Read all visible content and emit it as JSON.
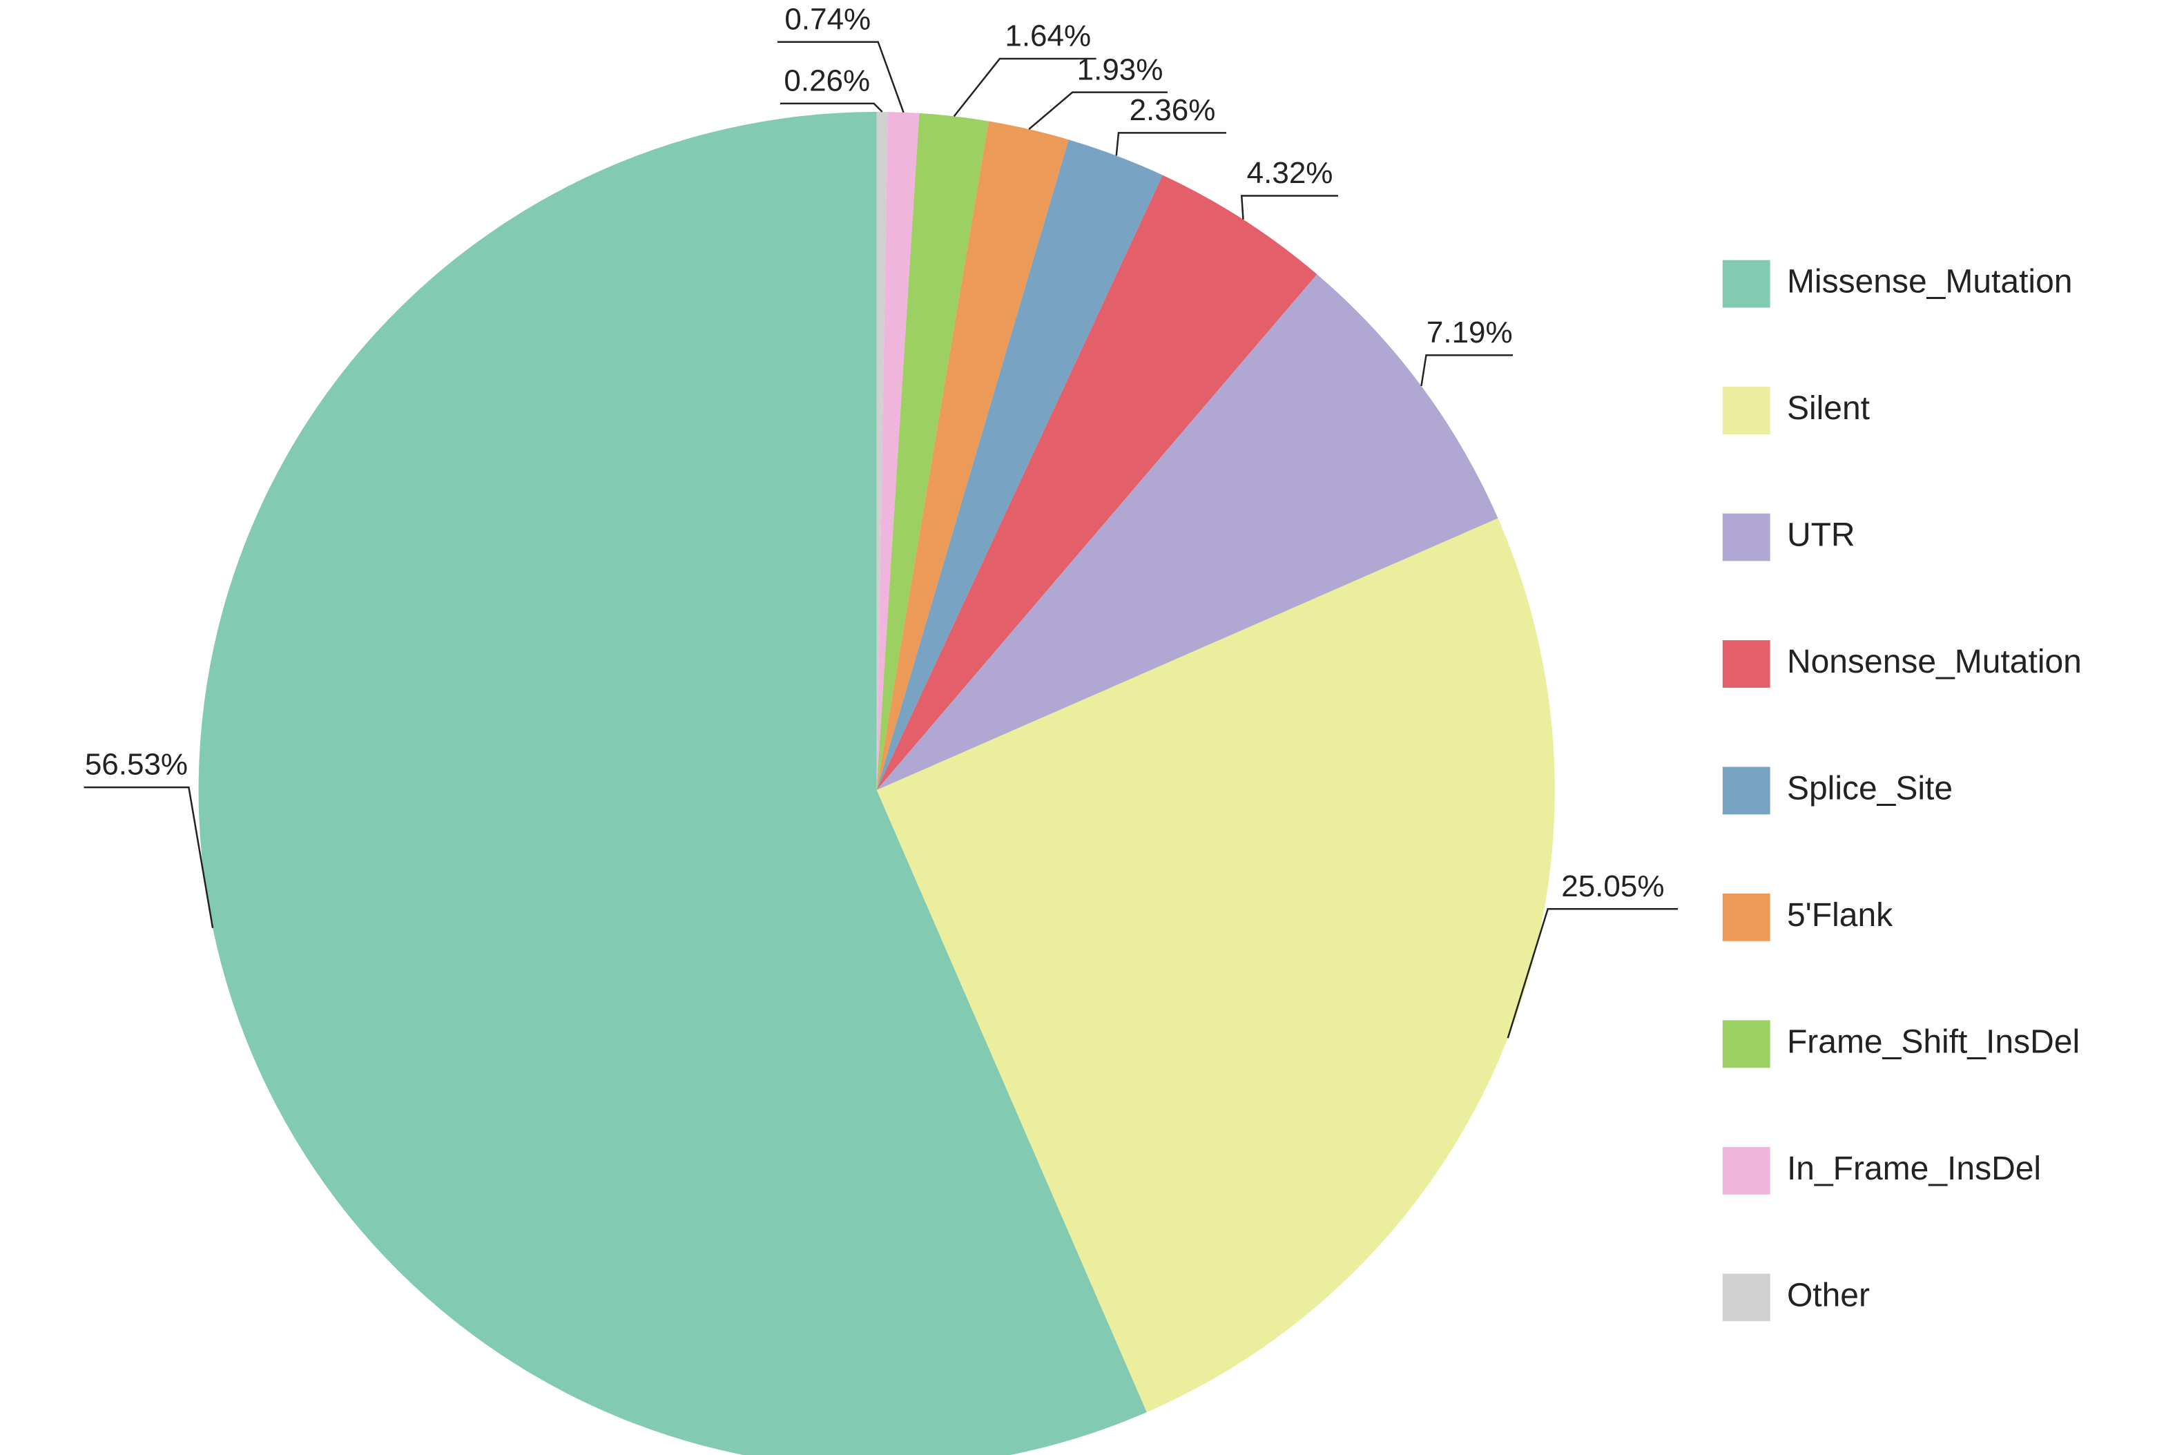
{
  "chart_data": {
    "type": "pie",
    "categories": [
      "Missense_Mutation",
      "Silent",
      "UTR",
      "Nonsense_Mutation",
      "Splice_Site",
      "5'Flank",
      "Frame_Shift_InsDel",
      "In_Frame_InsDel",
      "Other"
    ],
    "values": [
      56.53,
      25.05,
      7.19,
      4.32,
      2.36,
      1.93,
      1.64,
      0.74,
      0.26
    ],
    "value_labels": [
      "56.53%",
      "25.05%",
      "7.19%",
      "4.32%",
      "2.36%",
      "1.93%",
      "1.64%",
      "0.74%",
      "0.26%"
    ],
    "colors": [
      "#82cab2",
      "#ebee9c",
      "#b0a8d2",
      "#e3606a",
      "#78a3c2",
      "#ec9a58",
      "#9dd063",
      "#f0b5dc",
      "#d0d0d0"
    ],
    "legend": "right"
  }
}
